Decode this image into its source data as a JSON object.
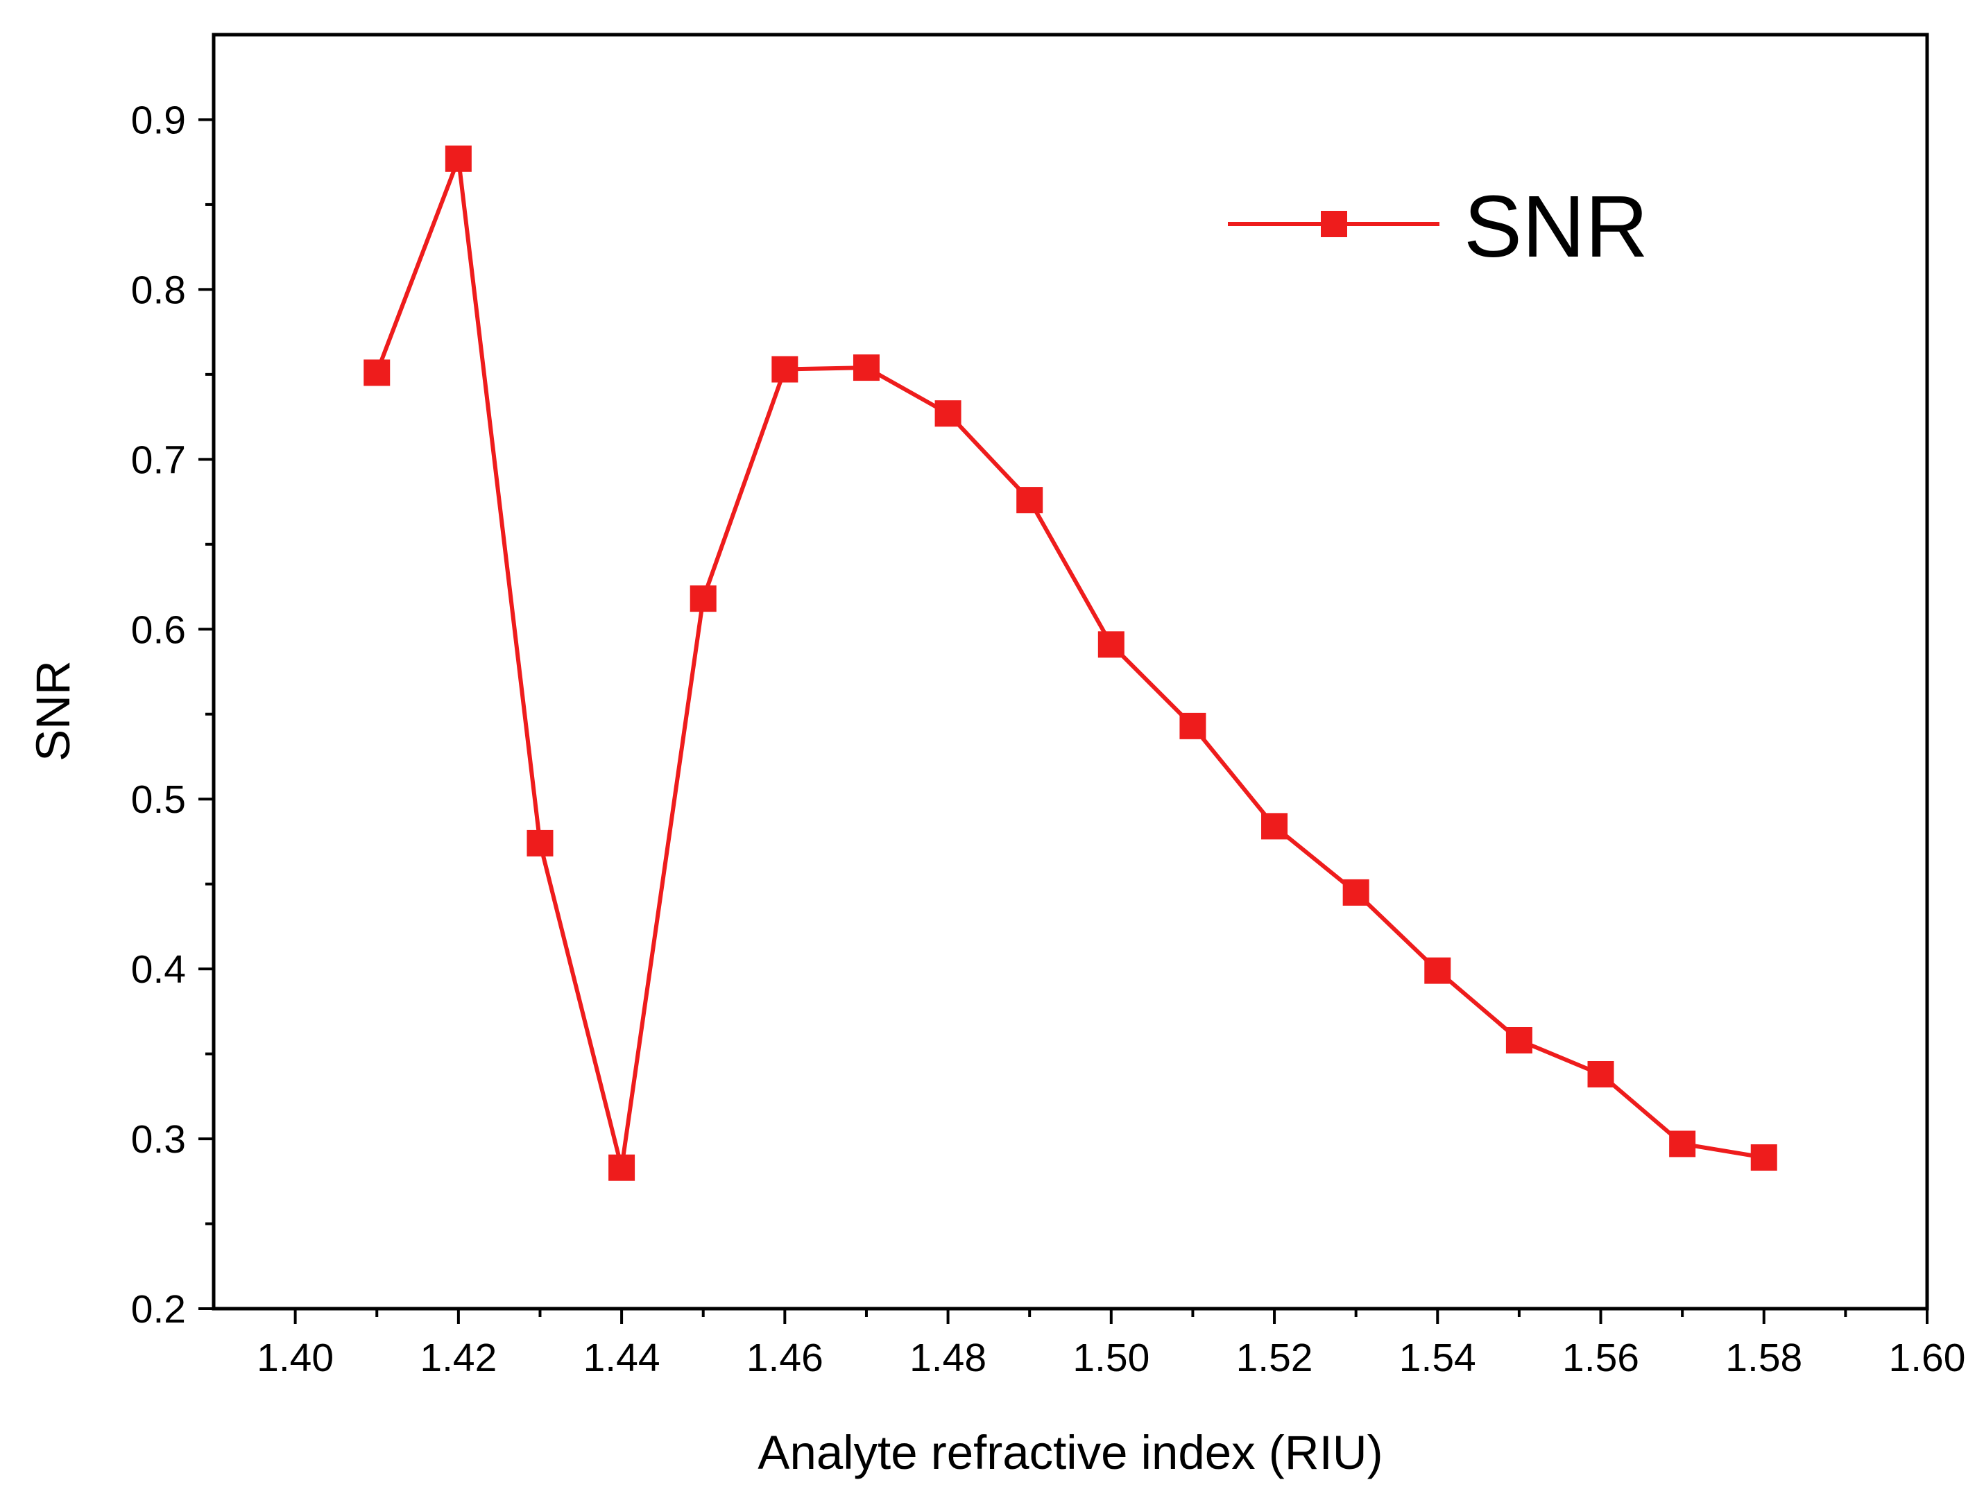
{
  "chart_data": {
    "type": "line",
    "title": "",
    "xlabel": "Analyte refractive index (RIU)",
    "ylabel": "SNR",
    "xlim": [
      1.39,
      1.6
    ],
    "ylim": [
      0.2,
      0.95
    ],
    "x_ticks": [
      "1.40",
      "1.42",
      "1.44",
      "1.46",
      "1.48",
      "1.50",
      "1.52",
      "1.54",
      "1.56",
      "1.58",
      "1.60"
    ],
    "y_ticks": [
      "0.2",
      "0.3",
      "0.4",
      "0.5",
      "0.6",
      "0.7",
      "0.8",
      "0.9"
    ],
    "grid": false,
    "legend_position": "top-right",
    "series": [
      {
        "name": "SNR",
        "color": "#ee1c1c",
        "marker": "square",
        "x": [
          1.41,
          1.42,
          1.43,
          1.44,
          1.45,
          1.46,
          1.47,
          1.48,
          1.49,
          1.5,
          1.51,
          1.52,
          1.53,
          1.54,
          1.55,
          1.56,
          1.57,
          1.58
        ],
        "y": [
          0.751,
          0.877,
          0.474,
          0.283,
          0.618,
          0.753,
          0.754,
          0.727,
          0.676,
          0.591,
          0.543,
          0.484,
          0.445,
          0.399,
          0.358,
          0.338,
          0.297,
          0.289
        ]
      }
    ]
  }
}
